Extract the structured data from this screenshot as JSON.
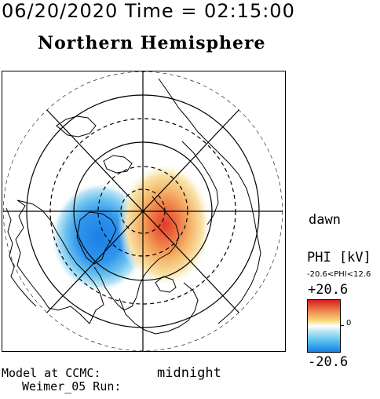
{
  "header": {
    "timestamp": "06/20/2020 Time = 02:15:00",
    "title": "Northern Hemisphere"
  },
  "map": {
    "label_dawn": "dawn",
    "label_midnight": "midnight",
    "positive_color": "#e23a2a",
    "negative_color": "#1a82e8"
  },
  "colorbar": {
    "title": "PHI [kV]",
    "range_text": "-20.6<PHI<12.6",
    "max_label": "+20.6",
    "min_label": "-20.6",
    "zero_label": "0"
  },
  "footer": {
    "model_line": "Model at CCMC:",
    "run_line": "Weimer_05 Run:"
  }
}
